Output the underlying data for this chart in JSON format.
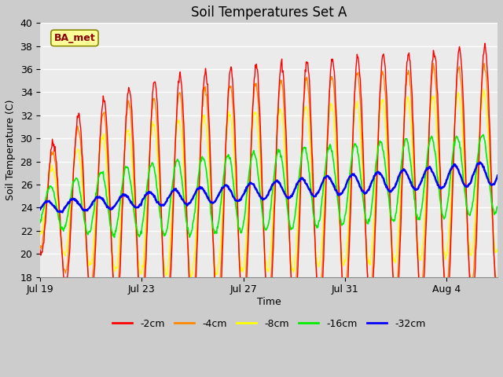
{
  "title": "Soil Temperatures Set A",
  "xlabel": "Time",
  "ylabel": "Soil Temperature (C)",
  "ylim": [
    18,
    40
  ],
  "yticks": [
    18,
    20,
    22,
    24,
    26,
    28,
    30,
    32,
    34,
    36,
    38,
    40
  ],
  "xtick_labels": [
    "Jul 19",
    "Jul 23",
    "Jul 27",
    "Jul 31",
    "Aug 4"
  ],
  "xtick_positions": [
    0,
    4,
    8,
    12,
    16
  ],
  "legend_labels": [
    "-2cm",
    "-4cm",
    "-8cm",
    "-16cm",
    "-32cm"
  ],
  "legend_colors": [
    "#FF0000",
    "#FF8800",
    "#FFFF00",
    "#00EE00",
    "#0000FF"
  ],
  "annotation_text": "BA_met",
  "annotation_color": "#8B0000",
  "annotation_bg": "#FFFF99",
  "plot_bg_color": "#EBEBEB",
  "fig_bg_color": "#CCCCCC",
  "n_days": 18,
  "pts_per_day": 48,
  "title_fontsize": 12,
  "label_fontsize": 9,
  "tick_fontsize": 9
}
